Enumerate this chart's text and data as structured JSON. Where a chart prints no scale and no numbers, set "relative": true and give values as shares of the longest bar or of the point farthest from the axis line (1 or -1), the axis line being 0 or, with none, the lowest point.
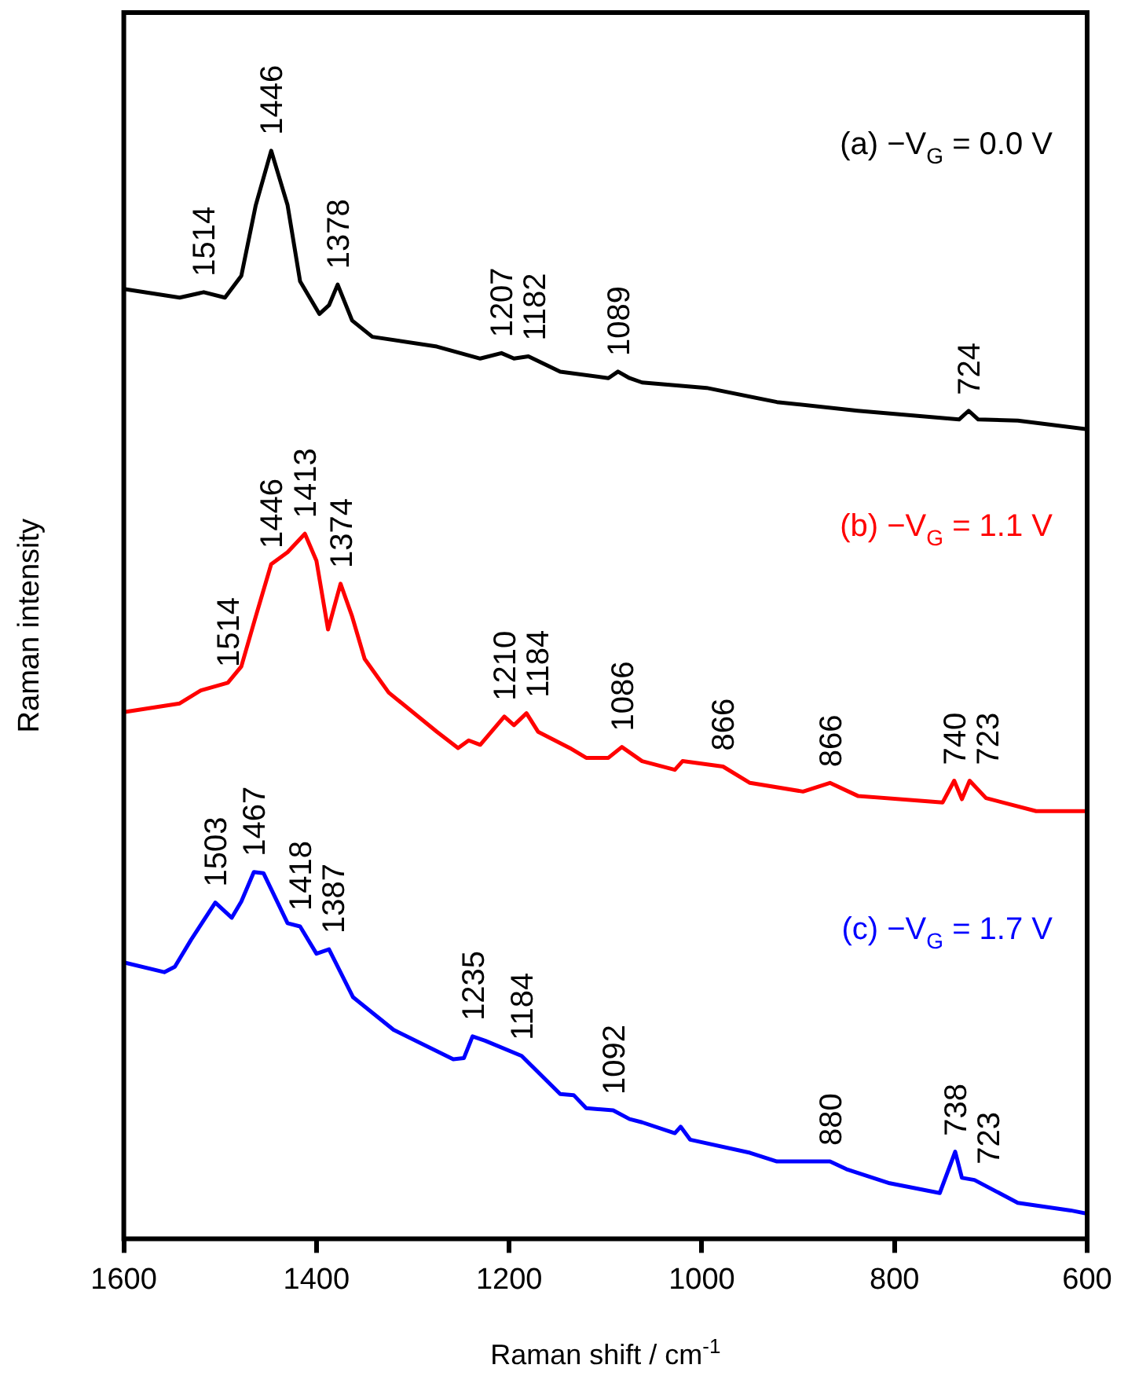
{
  "chart_data": {
    "type": "line",
    "xlabel": "Raman shift / cm$^{-1}$",
    "ylabel": "Raman intensity",
    "relative": true,
    "xlim": [
      1600,
      600
    ],
    "xticks": [
      1600,
      1400,
      1200,
      1000,
      800,
      600
    ],
    "grid": false,
    "legend": false,
    "marker": "none",
    "line_style": "solid",
    "series": [
      {
        "name": "(a) −V$_{G}$ = 0.0 V",
        "color": "#000000",
        "x": [
          1600,
          1542,
          1517,
          1495,
          1478,
          1463,
          1447,
          1430,
          1417,
          1397,
          1387,
          1378,
          1363,
          1342,
          1275,
          1230,
          1208,
          1195,
          1180,
          1147,
          1097,
          1087,
          1075,
          1062,
          995,
          922,
          838,
          733,
          723,
          713,
          672,
          600
        ],
        "values": [
          0.873,
          0.865,
          0.87,
          0.865,
          0.885,
          0.95,
          1,
          0.95,
          0.88,
          0.85,
          0.858,
          0.877,
          0.844,
          0.829,
          0.82,
          0.809,
          0.814,
          0.809,
          0.811,
          0.797,
          0.791,
          0.797,
          0.791,
          0.787,
          0.782,
          0.769,
          0.761,
          0.753,
          0.761,
          0.753,
          0.752,
          0.744
        ]
      },
      {
        "name": "(b) −V$_{G}$ = 1.1 V",
        "color": "#ff0000",
        "x": [
          1600,
          1542,
          1520,
          1492,
          1478,
          1463,
          1447,
          1430,
          1412,
          1400,
          1388,
          1375,
          1363,
          1350,
          1325,
          1275,
          1253,
          1242,
          1230,
          1205,
          1195,
          1182,
          1170,
          1137,
          1120,
          1097,
          1083,
          1062,
          1028,
          1020,
          978,
          950,
          895,
          867,
          838,
          750,
          738,
          730,
          722,
          705,
          653,
          600
        ],
        "values": [
          0.484,
          0.492,
          0.504,
          0.511,
          0.526,
          0.572,
          0.62,
          0.631,
          0.648,
          0.623,
          0.56,
          0.602,
          0.572,
          0.533,
          0.502,
          0.466,
          0.451,
          0.458,
          0.454,
          0.48,
          0.472,
          0.483,
          0.466,
          0.451,
          0.442,
          0.442,
          0.452,
          0.439,
          0.431,
          0.439,
          0.434,
          0.419,
          0.411,
          0.419,
          0.407,
          0.401,
          0.421,
          0.404,
          0.421,
          0.405,
          0.393,
          0.393
        ]
      },
      {
        "name": "(c) −V$_{G}$ = 1.7 V",
        "color": "#0000ff",
        "x": [
          1600,
          1558,
          1547,
          1530,
          1505,
          1488,
          1478,
          1465,
          1455,
          1430,
          1417,
          1400,
          1387,
          1362,
          1320,
          1258,
          1247,
          1238,
          1225,
          1187,
          1147,
          1133,
          1120,
          1092,
          1075,
          1062,
          1028,
          1022,
          1012,
          950,
          922,
          867,
          850,
          805,
          753,
          742,
          737,
          730,
          717,
          672,
          617,
          600
        ],
        "values": [
          0.254,
          0.245,
          0.25,
          0.275,
          0.309,
          0.295,
          0.31,
          0.337,
          0.336,
          0.29,
          0.287,
          0.262,
          0.266,
          0.222,
          0.192,
          0.165,
          0.166,
          0.186,
          0.182,
          0.168,
          0.133,
          0.132,
          0.12,
          0.118,
          0.11,
          0.107,
          0.097,
          0.103,
          0.091,
          0.079,
          0.071,
          0.071,
          0.064,
          0.051,
          0.042,
          0.068,
          0.08,
          0.056,
          0.054,
          0.033,
          0.026,
          0.023
        ]
      }
    ],
    "annotations": [
      {
        "text": "1514",
        "x": 1517,
        "y": 0.87
      },
      {
        "text": "1446",
        "x": 1447,
        "y": 1
      },
      {
        "text": "1378",
        "x": 1378,
        "y": 0.877
      },
      {
        "text": "1207",
        "x": 1208,
        "y": 0.814
      },
      {
        "text": "1182",
        "x": 1180,
        "y": 0.811
      },
      {
        "text": "1089",
        "x": 1087,
        "y": 0.797
      },
      {
        "text": "724",
        "x": 723,
        "y": 0.761
      },
      {
        "text": "1514",
        "x": 1492,
        "y": 0.511
      },
      {
        "text": "1446",
        "x": 1447,
        "y": 0.62
      },
      {
        "text": "1413",
        "x": 1412,
        "y": 0.648
      },
      {
        "text": "1374",
        "x": 1375,
        "y": 0.602
      },
      {
        "text": "1210",
        "x": 1205,
        "y": 0.48
      },
      {
        "text": "1184",
        "x": 1182,
        "y": 0.483
      },
      {
        "text": "1086",
        "x": 1083,
        "y": 0.452
      },
      {
        "text": "866",
        "x": 978,
        "y": 0.434
      },
      {
        "text": "866",
        "x": 867,
        "y": 0.419
      },
      {
        "text": "740",
        "x": 738,
        "y": 0.421
      },
      {
        "text": "723",
        "x": 722,
        "y": 0.421
      },
      {
        "text": "1503",
        "x": 1505,
        "y": 0.309
      },
      {
        "text": "1467",
        "x": 1465,
        "y": 0.337
      },
      {
        "text": "1418",
        "x": 1417,
        "y": 0.287
      },
      {
        "text": "1387",
        "x": 1387,
        "y": 0.266
      },
      {
        "text": "1235",
        "x": 1238,
        "y": 0.186
      },
      {
        "text": "1184",
        "x": 1187,
        "y": 0.168
      },
      {
        "text": "1092",
        "x": 1092,
        "y": 0.118
      },
      {
        "text": "880",
        "x": 867,
        "y": 0.071
      },
      {
        "text": "738",
        "x": 737,
        "y": 0.08
      },
      {
        "text": "723",
        "x": 717,
        "y": 0.054
      }
    ]
  }
}
